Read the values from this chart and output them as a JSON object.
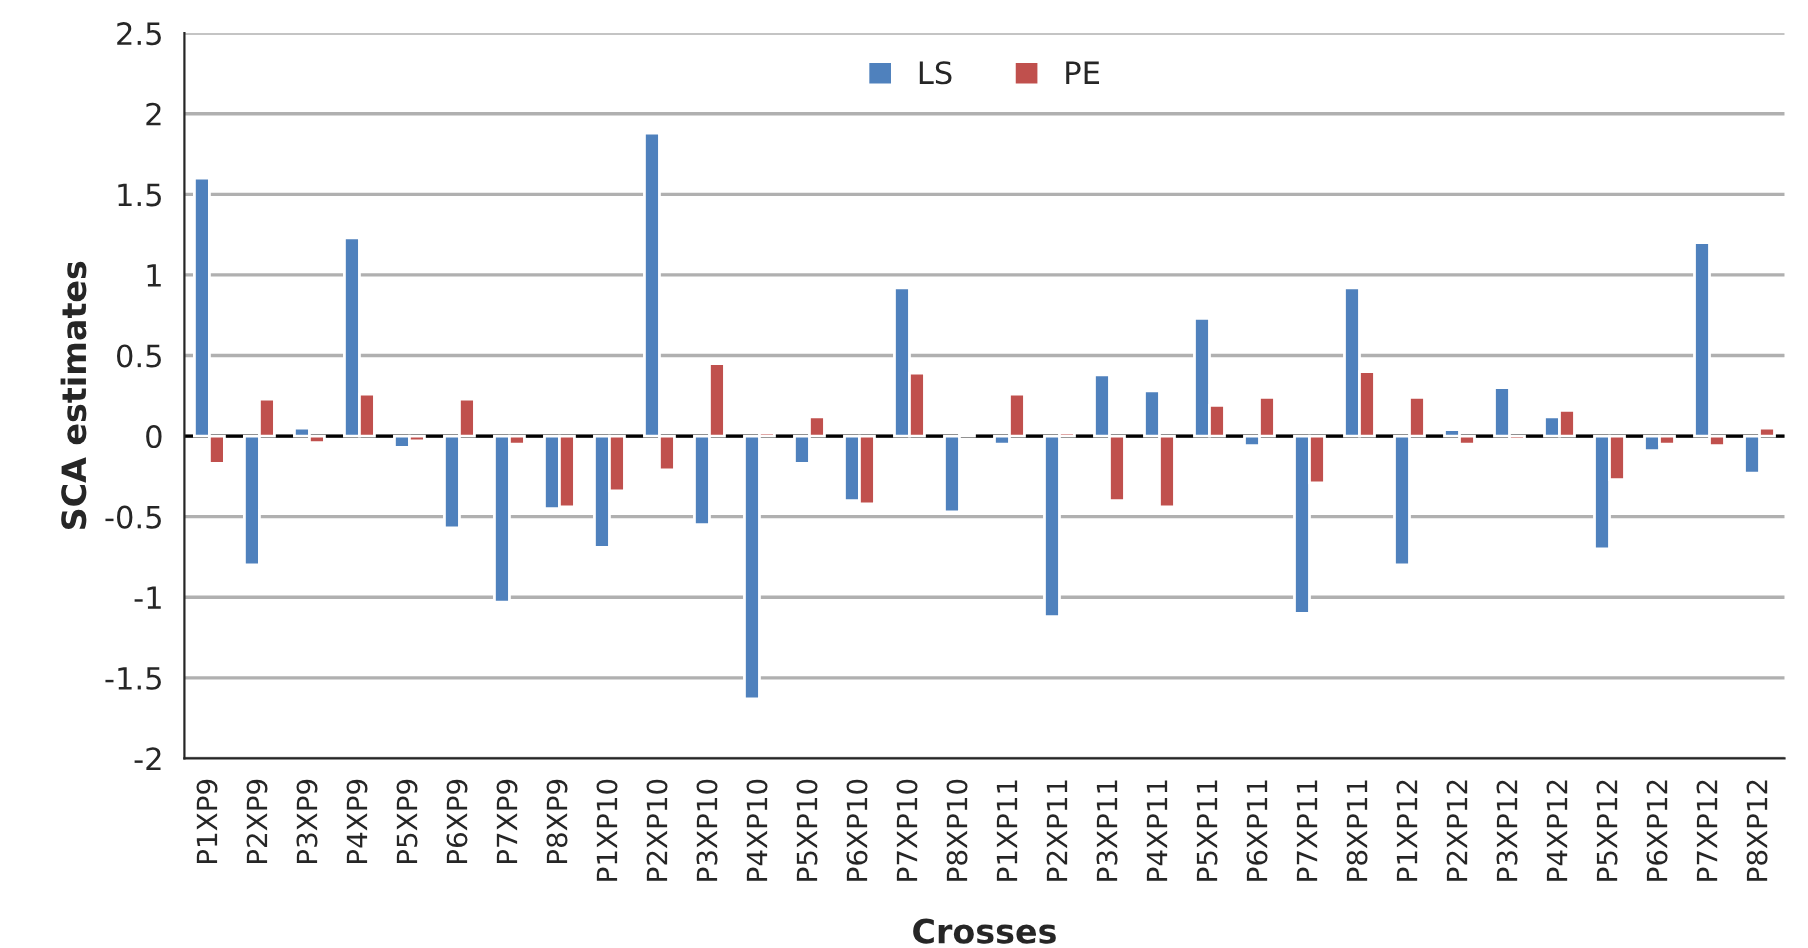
{
  "chart_data": {
    "type": "bar",
    "xlabel": "Crosses",
    "ylabel": "SCA estimates",
    "categories": [
      "P1XP9",
      "P2XP9",
      "P3XP9",
      "P4XP9",
      "P5XP9",
      "P6XP9",
      "P7XP9",
      "P8XP9",
      "P1XP10",
      "P2XP10",
      "P3XP10",
      "P4XP10",
      "P5XP10",
      "P6XP10",
      "P7XP10",
      "P8XP10",
      "P1XP11",
      "P2XP11",
      "P3XP11",
      "P4XP11",
      "P5XP11",
      "P6XP11",
      "P7XP11",
      "P8XP11",
      "P1XP12",
      "P2XP12",
      "P3XP12",
      "P4XP12",
      "P5XP12",
      "P6XP12",
      "P7XP12",
      "P8XP12"
    ],
    "series": [
      {
        "name": "LS",
        "color": "#4f81bd",
        "values": [
          1.6,
          -0.8,
          0.05,
          1.23,
          -0.07,
          -0.57,
          -1.03,
          -0.45,
          -0.69,
          1.88,
          -0.55,
          -1.63,
          -0.17,
          -0.4,
          0.92,
          -0.47,
          -0.05,
          -1.12,
          0.38,
          0.28,
          0.73,
          -0.06,
          -1.1,
          0.92,
          -0.8,
          0.04,
          0.3,
          0.12,
          -0.7,
          -0.09,
          1.2,
          -0.23
        ]
      },
      {
        "name": "PE",
        "color": "#c0504d",
        "values": [
          -0.17,
          0.23,
          -0.04,
          0.26,
          -0.03,
          0.23,
          -0.05,
          -0.44,
          -0.34,
          -0.21,
          0.45,
          0.02,
          0.12,
          -0.42,
          0.39,
          0.01,
          0.26,
          0.02,
          -0.4,
          -0.44,
          0.19,
          0.24,
          -0.29,
          0.4,
          0.24,
          -0.05,
          -0.02,
          0.16,
          -0.27,
          -0.05,
          -0.06,
          0.05
        ]
      }
    ],
    "ylim": [
      -2,
      2.5
    ],
    "yticks": [
      -2,
      -1.5,
      -1,
      -0.5,
      0,
      0.5,
      1,
      1.5,
      2,
      2.5
    ],
    "grid": "y",
    "legend": "top"
  }
}
